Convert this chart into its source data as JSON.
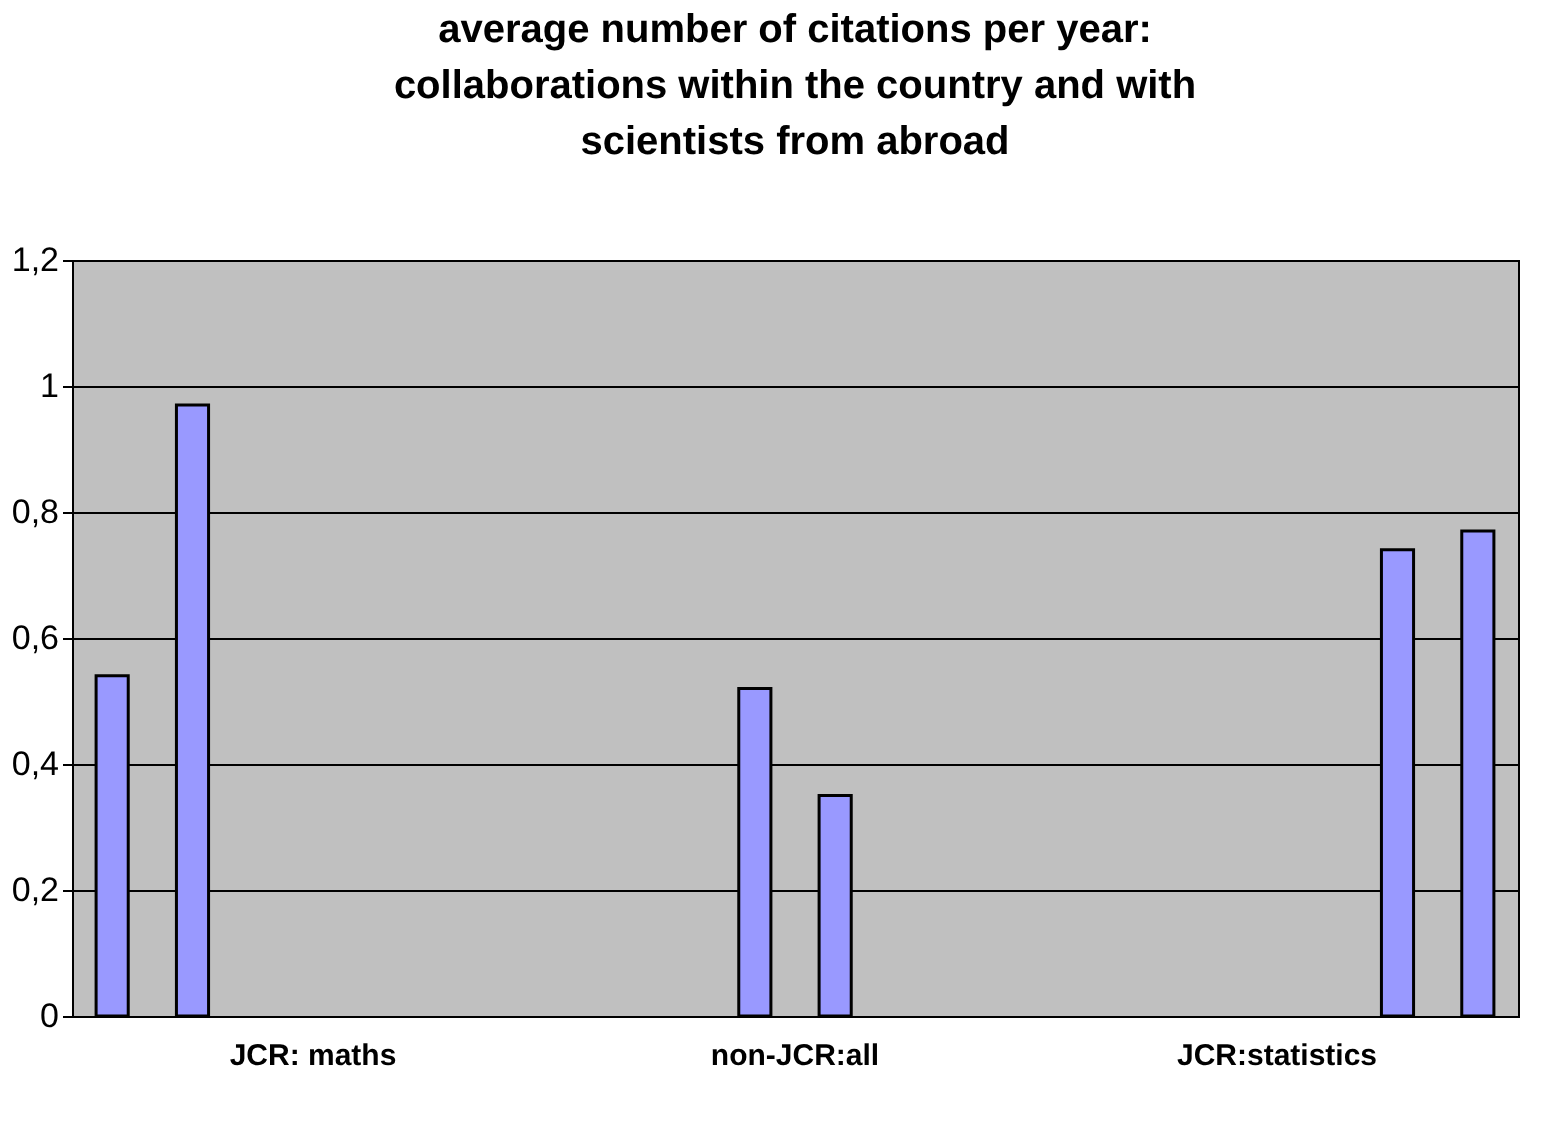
{
  "chart_data": {
    "type": "bar",
    "title": "average number of citations per year: collaborations within the country and with scientists from abroad",
    "categories": [
      "JCR: maths",
      "non-JCR:all",
      "JCR:statistics"
    ],
    "series": [
      {
        "color": "#9999ff",
        "values": [
          0.54,
          null,
          null
        ]
      },
      {
        "color": "#9999ff",
        "values": [
          0.97,
          null,
          null
        ]
      },
      {
        "color": "#9999ff",
        "values": [
          null,
          0.52,
          null
        ]
      },
      {
        "color": "#9999ff",
        "values": [
          null,
          0.35,
          null
        ]
      },
      {
        "color": "#9999ff",
        "values": [
          null,
          null,
          0.74
        ]
      },
      {
        "color": "#9999ff",
        "values": [
          null,
          null,
          0.77
        ]
      }
    ],
    "ylim": [
      0,
      1.2
    ],
    "yticks": [
      {
        "value": 0,
        "label": "0"
      },
      {
        "value": 0.2,
        "label": "0,2"
      },
      {
        "value": 0.4,
        "label": "0,4"
      },
      {
        "value": 0.6,
        "label": "0,6"
      },
      {
        "value": 0.8,
        "label": "0,8"
      },
      {
        "value": 1,
        "label": "1"
      },
      {
        "value": 1.2,
        "label": "1,2"
      }
    ],
    "grid": "y"
  }
}
